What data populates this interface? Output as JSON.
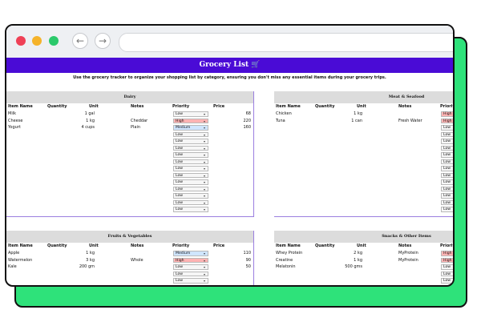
{
  "title": "Grocery List 🛒",
  "subtitle": "Use the grocery tracker to organize your shopping list by category, ensuring you don't miss any essential items during your grocery trips.",
  "columns": {
    "item": "Item Name",
    "qty": "Quantity",
    "unit": "Unit",
    "notes": "Notes",
    "priority": "Priority",
    "price": "Price"
  },
  "caret": "▾",
  "colors": {
    "title_bar": "#4a0bd6",
    "backdrop": "#2ee27a",
    "high": "#ffb3b3",
    "medium": "#cfe5ff"
  },
  "sections": [
    {
      "name": "Dairy",
      "rows": [
        {
          "item": "Milk",
          "unit": "1 gal",
          "notes": "",
          "priority": "Low",
          "price": "68"
        },
        {
          "item": "Cheese",
          "unit": "1 kg",
          "notes": "Cheddar",
          "priority": "High",
          "price": "220"
        },
        {
          "item": "Yogurt",
          "unit": "4 cups",
          "notes": "Plain",
          "priority": "Medium",
          "price": "160"
        },
        {
          "item": "",
          "unit": "",
          "notes": "",
          "priority": "Low",
          "price": ""
        },
        {
          "item": "",
          "unit": "",
          "notes": "",
          "priority": "Low",
          "price": ""
        },
        {
          "item": "",
          "unit": "",
          "notes": "",
          "priority": "Low",
          "price": ""
        },
        {
          "item": "",
          "unit": "",
          "notes": "",
          "priority": "Low",
          "price": ""
        },
        {
          "item": "",
          "unit": "",
          "notes": "",
          "priority": "Low",
          "price": ""
        },
        {
          "item": "",
          "unit": "",
          "notes": "",
          "priority": "Low",
          "price": ""
        },
        {
          "item": "",
          "unit": "",
          "notes": "",
          "priority": "Low",
          "price": ""
        },
        {
          "item": "",
          "unit": "",
          "notes": "",
          "priority": "Low",
          "price": ""
        },
        {
          "item": "",
          "unit": "",
          "notes": "",
          "priority": "Low",
          "price": ""
        },
        {
          "item": "",
          "unit": "",
          "notes": "",
          "priority": "Low",
          "price": ""
        },
        {
          "item": "",
          "unit": "",
          "notes": "",
          "priority": "Low",
          "price": ""
        },
        {
          "item": "",
          "unit": "",
          "notes": "",
          "priority": "Low",
          "price": ""
        }
      ]
    },
    {
      "name": "Meat & Seafood",
      "rows": [
        {
          "item": "Chicken",
          "unit": "1 kg",
          "notes": "",
          "priority": "High",
          "price": ""
        },
        {
          "item": "Tuna",
          "unit": "1 can",
          "notes": "Fresh Water",
          "priority": "High",
          "price": ""
        },
        {
          "item": "",
          "unit": "",
          "notes": "",
          "priority": "Low",
          "price": ""
        },
        {
          "item": "",
          "unit": "",
          "notes": "",
          "priority": "Low",
          "price": ""
        },
        {
          "item": "",
          "unit": "",
          "notes": "",
          "priority": "Low",
          "price": ""
        },
        {
          "item": "",
          "unit": "",
          "notes": "",
          "priority": "Low",
          "price": ""
        },
        {
          "item": "",
          "unit": "",
          "notes": "",
          "priority": "Low",
          "price": ""
        },
        {
          "item": "",
          "unit": "",
          "notes": "",
          "priority": "Low",
          "price": ""
        },
        {
          "item": "",
          "unit": "",
          "notes": "",
          "priority": "Low",
          "price": ""
        },
        {
          "item": "",
          "unit": "",
          "notes": "",
          "priority": "Low",
          "price": ""
        },
        {
          "item": "",
          "unit": "",
          "notes": "",
          "priority": "Low",
          "price": ""
        },
        {
          "item": "",
          "unit": "",
          "notes": "",
          "priority": "Low",
          "price": ""
        },
        {
          "item": "",
          "unit": "",
          "notes": "",
          "priority": "Low",
          "price": ""
        },
        {
          "item": "",
          "unit": "",
          "notes": "",
          "priority": "Low",
          "price": ""
        },
        {
          "item": "",
          "unit": "",
          "notes": "",
          "priority": "Low",
          "price": ""
        }
      ]
    },
    {
      "name": "Fruits & Vegetables",
      "rows": [
        {
          "item": "Apple",
          "unit": "1 kg",
          "notes": "",
          "priority": "Medium",
          "price": "110"
        },
        {
          "item": "Watermelon",
          "unit": "3 kg",
          "notes": "Whole",
          "priority": "High",
          "price": "90"
        },
        {
          "item": "Kale",
          "unit": "200 gm",
          "notes": "",
          "priority": "Low",
          "price": "50"
        },
        {
          "item": "",
          "unit": "",
          "notes": "",
          "priority": "Low",
          "price": ""
        },
        {
          "item": "",
          "unit": "",
          "notes": "",
          "priority": "Low",
          "price": ""
        }
      ]
    },
    {
      "name": "Snacks & Other Items",
      "rows": [
        {
          "item": "Whey Protein",
          "unit": "2 kg",
          "notes": "MyProtein",
          "priority": "High",
          "price": ""
        },
        {
          "item": "Creatine",
          "unit": "1 kg",
          "notes": "MyProtein",
          "priority": "High",
          "price": ""
        },
        {
          "item": "Melatonin",
          "unit": "500 gms",
          "notes": "",
          "priority": "Low",
          "price": ""
        },
        {
          "item": "",
          "unit": "",
          "notes": "",
          "priority": "Low",
          "price": ""
        },
        {
          "item": "",
          "unit": "",
          "notes": "",
          "priority": "Low",
          "price": ""
        }
      ]
    }
  ]
}
